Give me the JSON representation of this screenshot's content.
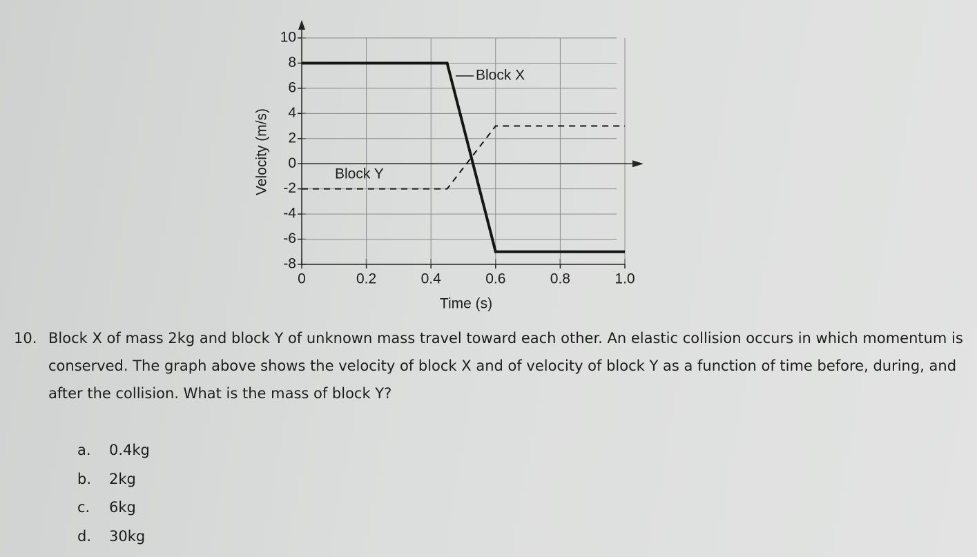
{
  "chart_data": {
    "type": "line",
    "x_label": "Time (s)",
    "y_label": "Velocity (m/s)",
    "x": [
      0,
      0.45,
      0.6,
      1
    ],
    "series": [
      {
        "name": "Block X",
        "color": "#151515",
        "line_style": "solid",
        "values": [
          8,
          8,
          -7,
          -7
        ]
      },
      {
        "name": "Block Y",
        "color": "#151515",
        "line_style": "dashed",
        "values": [
          -2,
          -2,
          3,
          3
        ]
      }
    ],
    "xlim": [
      0,
      1
    ],
    "ylim": [
      -8,
      10
    ],
    "xticks": [
      0,
      0.2,
      0.4,
      0.6,
      0.8,
      {
        "value": 1,
        "label": "1.0"
      }
    ],
    "yticks": [
      10,
      8,
      6,
      4,
      2,
      0,
      -2,
      -4,
      -6,
      -8
    ],
    "grid": true
  },
  "question": {
    "number": "10.",
    "text": "Block X of mass 2kg and block Y of unknown mass travel toward each other. An elastic collision occurs in which momentum is conserved. The graph above shows the velocity of block X and of velocity of block Y as a function of time before, during, and after the collision. What is the mass of block Y?",
    "choices": [
      {
        "letter": "a.",
        "text": "0.4kg"
      },
      {
        "letter": "b.",
        "text": "2kg"
      },
      {
        "letter": "c.",
        "text": "6kg"
      },
      {
        "letter": "d.",
        "text": "30kg"
      }
    ]
  }
}
